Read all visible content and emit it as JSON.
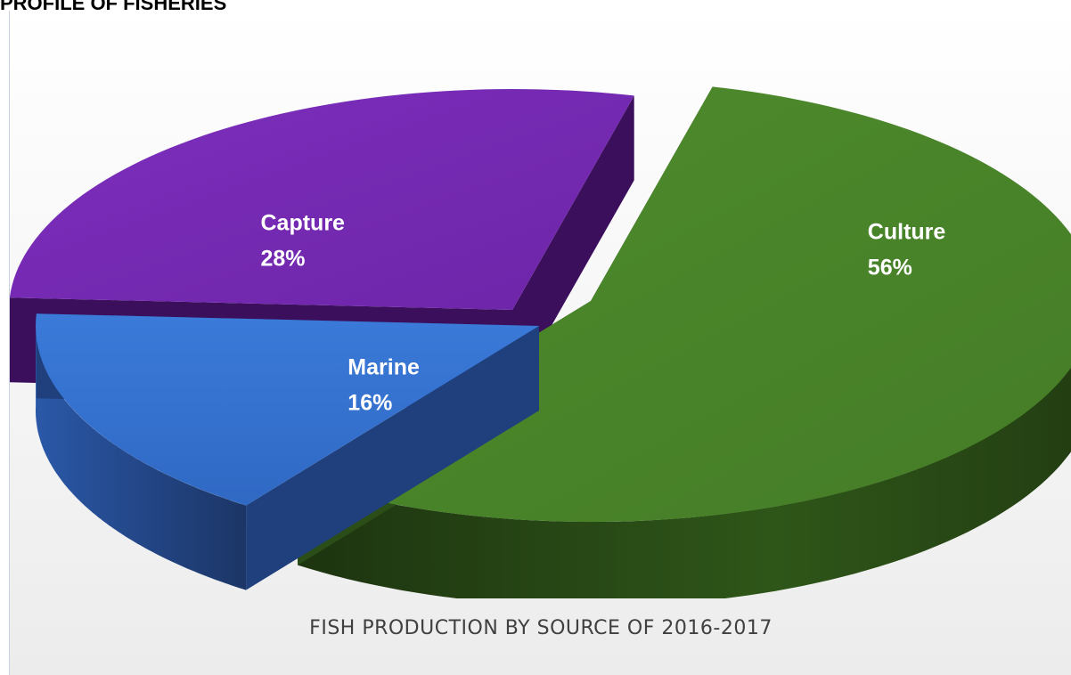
{
  "header": {
    "text": "PROFILE OF FISHERIES"
  },
  "chart_data": {
    "type": "pie",
    "title": "FISH PRODUCTION BY SOURCE OF 2016-2017",
    "slices": [
      {
        "name": "Culture",
        "value": 56,
        "value_label": "56%",
        "color": "#4e8a2c",
        "side_color": "#2b4d17"
      },
      {
        "name": "Marine",
        "value": 16,
        "value_label": "16%",
        "color": "#3571d0",
        "side_color": "#1f3f7d"
      },
      {
        "name": "Capture",
        "value": 28,
        "value_label": "28%",
        "color": "#7a2bb8",
        "side_color": "#3b0f5c"
      }
    ],
    "style": "3d-exploded",
    "legend": "none"
  }
}
